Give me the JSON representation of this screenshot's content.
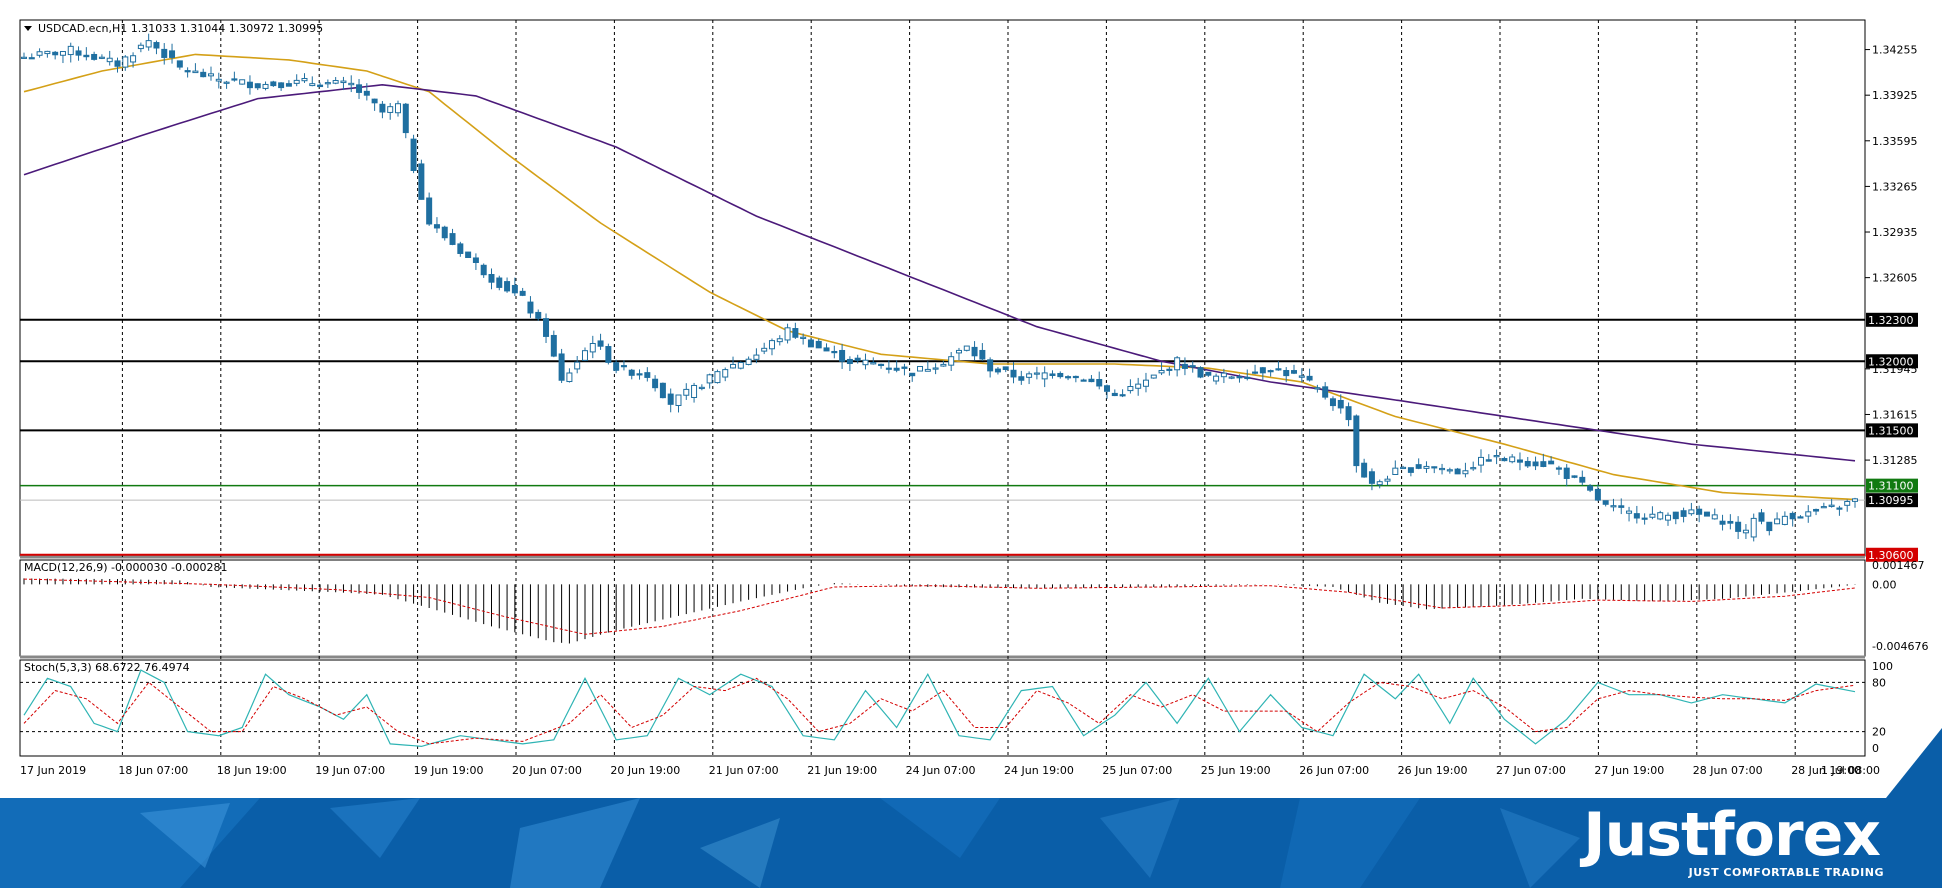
{
  "colors": {
    "candle": "#1f6fa0",
    "ma_fast": "#d4a017",
    "ma_slow": "#4b1a7a",
    "grid": "#000000",
    "level_line": "#000000",
    "level_green": "#117a11",
    "level_red": "#d40000",
    "stoch_main": "#2fb4b4",
    "stoch_signal": "#d40000",
    "macd_signal": "#d40000",
    "brand": "#0a5ea8"
  },
  "chart_data": [
    {
      "type": "candlestick",
      "title": "USDCAD.ecn,H1  1.31033 1.31044 1.30972 1.30995",
      "symbol": "USDCAD.ecn,H1",
      "ohlc_header": [
        "1.31033",
        "1.31044",
        "1.30972",
        "1.30995"
      ],
      "y_ticks": [
        "1.34255",
        "1.33925",
        "1.33595",
        "1.33265",
        "1.32935",
        "1.32605",
        "1.32300",
        "1.32000",
        "1.31945",
        "1.31615",
        "1.31500",
        "1.31285",
        "1.31100",
        "1.30995",
        "1.30600"
      ],
      "ylim": [
        1.3062,
        1.3444
      ],
      "x_tick_labels": [
        "17 Jun 2019",
        "18 Jun 07:00",
        "18 Jun 19:00",
        "19 Jun 07:00",
        "19 Jun 19:00",
        "20 Jun 07:00",
        "20 Jun 19:00",
        "21 Jun 07:00",
        "21 Jun 19:00",
        "24 Jun 07:00",
        "24 Jun 19:00",
        "25 Jun 07:00",
        "25 Jun 19:00",
        "26 Jun 07:00",
        "26 Jun 19:00",
        "27 Jun 07:00",
        "27 Jun 19:00",
        "28 Jun 07:00",
        "28 Jun 19:00",
        "1 Jul 08:00"
      ],
      "levels": [
        {
          "value": 1.323,
          "label": "1.32300",
          "style": "black"
        },
        {
          "value": 1.32,
          "label": "1.32000",
          "style": "black"
        },
        {
          "value": 1.315,
          "label": "1.31500",
          "style": "black"
        },
        {
          "value": 1.311,
          "label": "1.31100",
          "style": "green"
        },
        {
          "value": 1.30995,
          "label": "1.30995",
          "style": "current"
        },
        {
          "value": 1.306,
          "label": "1.30600",
          "style": "red"
        }
      ],
      "close_anchors": [
        [
          0,
          1.342
        ],
        [
          6,
          1.3425
        ],
        [
          12,
          1.3415
        ],
        [
          16,
          1.3432
        ],
        [
          20,
          1.3412
        ],
        [
          24,
          1.3405
        ],
        [
          30,
          1.34
        ],
        [
          36,
          1.3402
        ],
        [
          42,
          1.34
        ],
        [
          46,
          1.338
        ],
        [
          48,
          1.3385
        ],
        [
          50,
          1.334
        ],
        [
          52,
          1.33
        ],
        [
          56,
          1.328
        ],
        [
          60,
          1.326
        ],
        [
          64,
          1.3245
        ],
        [
          67,
          1.322
        ],
        [
          69,
          1.3185
        ],
        [
          71,
          1.32
        ],
        [
          73,
          1.3215
        ],
        [
          76,
          1.3195
        ],
        [
          80,
          1.319
        ],
        [
          83,
          1.317
        ],
        [
          86,
          1.318
        ],
        [
          90,
          1.3195
        ],
        [
          94,
          1.3205
        ],
        [
          98,
          1.3222
        ],
        [
          102,
          1.321
        ],
        [
          106,
          1.32
        ],
        [
          110,
          1.3198
        ],
        [
          114,
          1.3192
        ],
        [
          118,
          1.32
        ],
        [
          121,
          1.321
        ],
        [
          124,
          1.3195
        ],
        [
          128,
          1.3188
        ],
        [
          132,
          1.3192
        ],
        [
          136,
          1.3188
        ],
        [
          140,
          1.3175
        ],
        [
          144,
          1.3185
        ],
        [
          148,
          1.32
        ],
        [
          152,
          1.3188
        ],
        [
          156,
          1.319
        ],
        [
          160,
          1.3195
        ],
        [
          164,
          1.3188
        ],
        [
          167,
          1.3175
        ],
        [
          170,
          1.316
        ],
        [
          171,
          1.3125
        ],
        [
          173,
          1.311
        ],
        [
          176,
          1.312
        ],
        [
          180,
          1.3125
        ],
        [
          184,
          1.312
        ],
        [
          188,
          1.313
        ],
        [
          192,
          1.3128
        ],
        [
          196,
          1.3125
        ],
        [
          200,
          1.311
        ],
        [
          203,
          1.3095
        ],
        [
          206,
          1.309
        ],
        [
          210,
          1.3088
        ],
        [
          214,
          1.309
        ],
        [
          218,
          1.3085
        ],
        [
          221,
          1.3075
        ],
        [
          222,
          1.3088
        ],
        [
          224,
          1.308
        ],
        [
          226,
          1.3088
        ],
        [
          229,
          1.309
        ],
        [
          233,
          1.3095
        ],
        [
          235,
          1.30995
        ]
      ],
      "series": [
        {
          "name": "",
          "kind": "moving-average-fast",
          "anchors": [
            [
              0,
              1.3395
            ],
            [
              10,
              1.341
            ],
            [
              22,
              1.3422
            ],
            [
              34,
              1.3418
            ],
            [
              44,
              1.341
            ],
            [
              52,
              1.3395
            ],
            [
              62,
              1.335
            ],
            [
              74,
              1.33
            ],
            [
              88,
              1.325
            ],
            [
              98,
              1.3222
            ],
            [
              110,
              1.3205
            ],
            [
              124,
              1.3198
            ],
            [
              140,
              1.3198
            ],
            [
              152,
              1.3195
            ],
            [
              164,
              1.3185
            ],
            [
              176,
              1.316
            ],
            [
              190,
              1.314
            ],
            [
              204,
              1.3118
            ],
            [
              218,
              1.3105
            ],
            [
              235,
              1.31
            ]
          ]
        },
        {
          "name": "",
          "kind": "moving-average-slow",
          "anchors": [
            [
              0,
              1.3335
            ],
            [
              16,
              1.3365
            ],
            [
              30,
              1.339
            ],
            [
              46,
              1.34
            ],
            [
              58,
              1.3392
            ],
            [
              76,
              1.3355
            ],
            [
              94,
              1.3305
            ],
            [
              112,
              1.3265
            ],
            [
              130,
              1.3225
            ],
            [
              146,
              1.32
            ],
            [
              160,
              1.3185
            ],
            [
              176,
              1.3172
            ],
            [
              196,
              1.3155
            ],
            [
              214,
              1.314
            ],
            [
              235,
              1.3128
            ]
          ]
        }
      ]
    },
    {
      "type": "histogram",
      "title": "MACD(12,26,9) -0.000030 -0.000281",
      "y_ticks": [
        "0.001467",
        "0.00",
        "-0.004676"
      ],
      "ylim": [
        -0.0053,
        0.0017
      ],
      "bar_anchors": [
        [
          0,
          0.00045
        ],
        [
          12,
          0.0004
        ],
        [
          20,
          0.0003
        ],
        [
          24,
          -0.0002
        ],
        [
          32,
          -0.0004
        ],
        [
          40,
          -0.0006
        ],
        [
          46,
          -0.0008
        ],
        [
          52,
          -0.0018
        ],
        [
          60,
          -0.0032
        ],
        [
          68,
          -0.0044
        ],
        [
          70,
          -0.0045
        ],
        [
          76,
          -0.0035
        ],
        [
          84,
          -0.0024
        ],
        [
          92,
          -0.0013
        ],
        [
          100,
          -0.0003
        ],
        [
          104,
          0.0001
        ],
        [
          116,
          -0.0002
        ],
        [
          130,
          -0.0003
        ],
        [
          146,
          -0.0002
        ],
        [
          160,
          0.0
        ],
        [
          168,
          -0.0002
        ],
        [
          174,
          -0.0014
        ],
        [
          180,
          -0.0019
        ],
        [
          190,
          -0.0016
        ],
        [
          200,
          -0.0011
        ],
        [
          210,
          -0.0013
        ],
        [
          218,
          -0.0011
        ],
        [
          228,
          -0.0005
        ],
        [
          235,
          -3e-05
        ]
      ],
      "signal_anchors": [
        [
          0,
          0.0004
        ],
        [
          24,
          0.0
        ],
        [
          40,
          -0.0004
        ],
        [
          52,
          -0.001
        ],
        [
          62,
          -0.0025
        ],
        [
          72,
          -0.0038
        ],
        [
          82,
          -0.0032
        ],
        [
          92,
          -0.002
        ],
        [
          104,
          -0.0002
        ],
        [
          116,
          -0.0001
        ],
        [
          130,
          -0.0003
        ],
        [
          146,
          -0.0002
        ],
        [
          160,
          -0.0001
        ],
        [
          170,
          -0.0006
        ],
        [
          182,
          -0.0018
        ],
        [
          192,
          -0.0016
        ],
        [
          202,
          -0.0012
        ],
        [
          214,
          -0.0013
        ],
        [
          226,
          -0.0009
        ],
        [
          235,
          -0.00028
        ]
      ]
    },
    {
      "type": "line",
      "title": "Stoch(5,3,3) 68.6722 76.4974",
      "y_ticks": [
        "100",
        "80",
        "20",
        "0"
      ],
      "ylim": [
        0,
        100
      ],
      "level_lines": [
        80,
        20
      ],
      "main_anchors": [
        [
          0,
          40
        ],
        [
          3,
          85
        ],
        [
          6,
          75
        ],
        [
          9,
          30
        ],
        [
          12,
          20
        ],
        [
          15,
          95
        ],
        [
          18,
          80
        ],
        [
          21,
          20
        ],
        [
          25,
          15
        ],
        [
          28,
          25
        ],
        [
          31,
          90
        ],
        [
          34,
          65
        ],
        [
          38,
          50
        ],
        [
          41,
          35
        ],
        [
          44,
          65
        ],
        [
          47,
          5
        ],
        [
          51,
          2
        ],
        [
          56,
          15
        ],
        [
          60,
          10
        ],
        [
          64,
          5
        ],
        [
          68,
          10
        ],
        [
          72,
          85
        ],
        [
          76,
          10
        ],
        [
          80,
          15
        ],
        [
          84,
          85
        ],
        [
          88,
          65
        ],
        [
          92,
          90
        ],
        [
          96,
          75
        ],
        [
          100,
          15
        ],
        [
          104,
          10
        ],
        [
          108,
          70
        ],
        [
          112,
          25
        ],
        [
          116,
          90
        ],
        [
          120,
          15
        ],
        [
          124,
          10
        ],
        [
          128,
          70
        ],
        [
          132,
          75
        ],
        [
          136,
          15
        ],
        [
          140,
          40
        ],
        [
          144,
          80
        ],
        [
          148,
          30
        ],
        [
          152,
          85
        ],
        [
          156,
          20
        ],
        [
          160,
          65
        ],
        [
          164,
          25
        ],
        [
          168,
          15
        ],
        [
          172,
          90
        ],
        [
          176,
          60
        ],
        [
          179,
          90
        ],
        [
          183,
          30
        ],
        [
          186,
          85
        ],
        [
          190,
          35
        ],
        [
          194,
          5
        ],
        [
          198,
          35
        ],
        [
          202,
          80
        ],
        [
          206,
          65
        ],
        [
          210,
          65
        ],
        [
          214,
          55
        ],
        [
          218,
          65
        ],
        [
          222,
          60
        ],
        [
          226,
          55
        ],
        [
          230,
          78
        ],
        [
          235,
          68.67
        ]
      ],
      "signal_anchors": [
        [
          0,
          30
        ],
        [
          4,
          70
        ],
        [
          8,
          60
        ],
        [
          12,
          30
        ],
        [
          16,
          80
        ],
        [
          20,
          50
        ],
        [
          24,
          20
        ],
        [
          28,
          20
        ],
        [
          32,
          75
        ],
        [
          36,
          60
        ],
        [
          40,
          40
        ],
        [
          44,
          50
        ],
        [
          48,
          20
        ],
        [
          52,
          5
        ],
        [
          58,
          12
        ],
        [
          64,
          8
        ],
        [
          70,
          30
        ],
        [
          74,
          65
        ],
        [
          78,
          25
        ],
        [
          82,
          40
        ],
        [
          86,
          75
        ],
        [
          90,
          70
        ],
        [
          94,
          85
        ],
        [
          98,
          60
        ],
        [
          102,
          20
        ],
        [
          106,
          30
        ],
        [
          110,
          60
        ],
        [
          114,
          45
        ],
        [
          118,
          70
        ],
        [
          122,
          25
        ],
        [
          126,
          25
        ],
        [
          130,
          70
        ],
        [
          134,
          55
        ],
        [
          138,
          30
        ],
        [
          142,
          65
        ],
        [
          146,
          50
        ],
        [
          150,
          65
        ],
        [
          154,
          45
        ],
        [
          158,
          45
        ],
        [
          162,
          45
        ],
        [
          166,
          20
        ],
        [
          170,
          55
        ],
        [
          174,
          80
        ],
        [
          178,
          75
        ],
        [
          182,
          60
        ],
        [
          186,
          70
        ],
        [
          190,
          50
        ],
        [
          194,
          20
        ],
        [
          198,
          25
        ],
        [
          202,
          60
        ],
        [
          206,
          70
        ],
        [
          210,
          65
        ],
        [
          214,
          62
        ],
        [
          218,
          60
        ],
        [
          222,
          60
        ],
        [
          226,
          58
        ],
        [
          230,
          70
        ],
        [
          235,
          76.5
        ]
      ]
    }
  ],
  "brand": {
    "name": "Justforex",
    "tagline": "JUST COMFORTABLE TRADING"
  }
}
